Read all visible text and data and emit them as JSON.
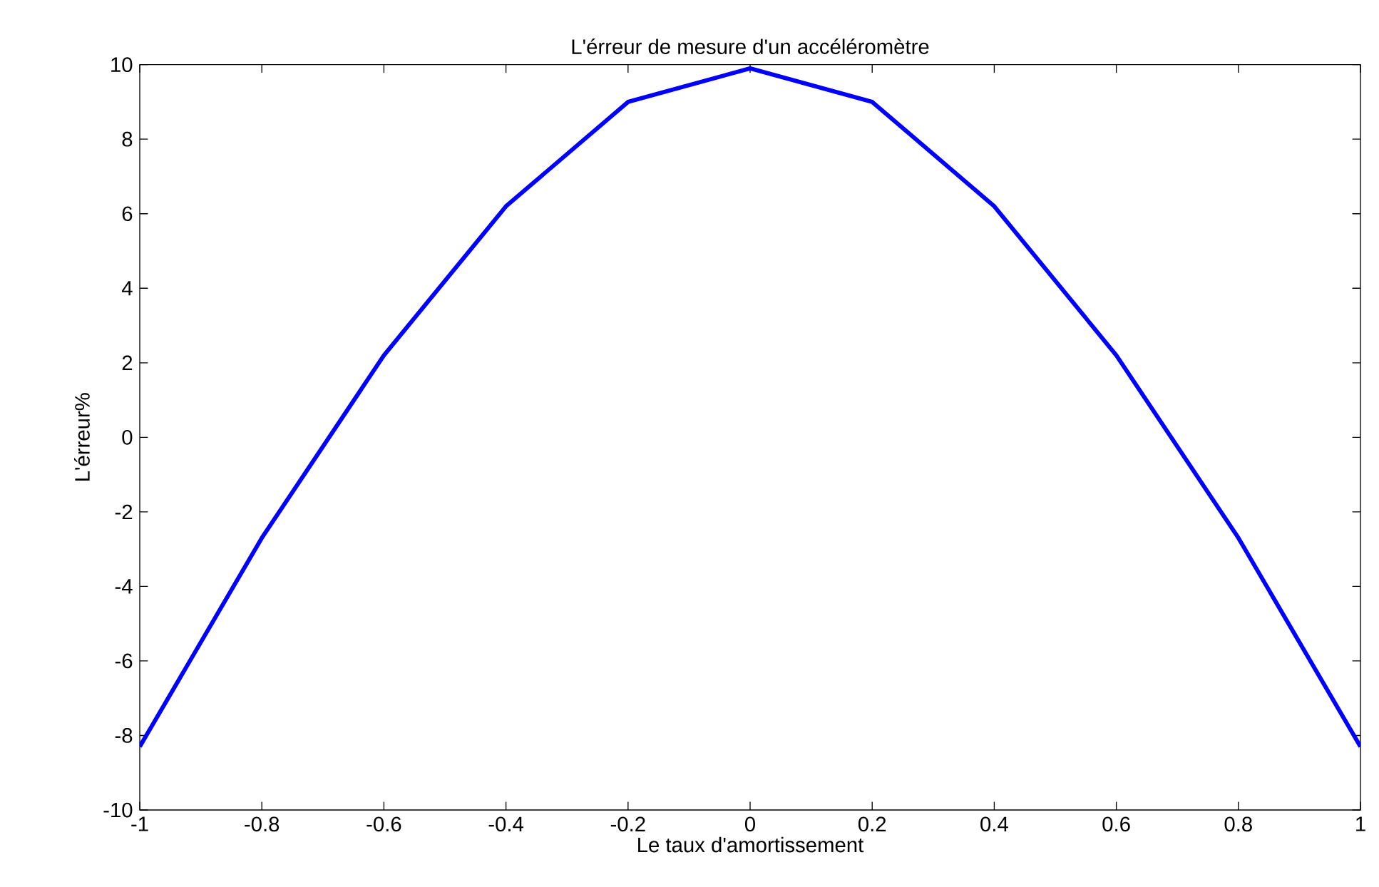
{
  "chart_data": {
    "type": "line",
    "title": "L'érreur de mesure d'un accéléromètre",
    "xlabel": "Le taux d'amortissement",
    "ylabel": "L'érreur%",
    "x": [
      -1,
      -0.8,
      -0.6,
      -0.4,
      -0.2,
      0,
      0.2,
      0.4,
      0.6,
      0.8,
      1
    ],
    "series": [
      {
        "color": "#0000ff",
        "values": [
          -8.3,
          -2.7,
          2.2,
          6.2,
          9.0,
          9.9,
          9.0,
          6.2,
          2.2,
          -2.7,
          -8.3
        ]
      }
    ],
    "xlim": [
      -1,
      1
    ],
    "ylim": [
      -10,
      10
    ],
    "xticks": [
      -1,
      -0.8,
      -0.6,
      -0.4,
      -0.2,
      0,
      0.2,
      0.4,
      0.6,
      0.8,
      1
    ],
    "yticks": [
      -10,
      -8,
      -6,
      -4,
      -2,
      0,
      2,
      4,
      6,
      8,
      10
    ],
    "grid": false,
    "marker": "none",
    "line_style": "solid"
  }
}
